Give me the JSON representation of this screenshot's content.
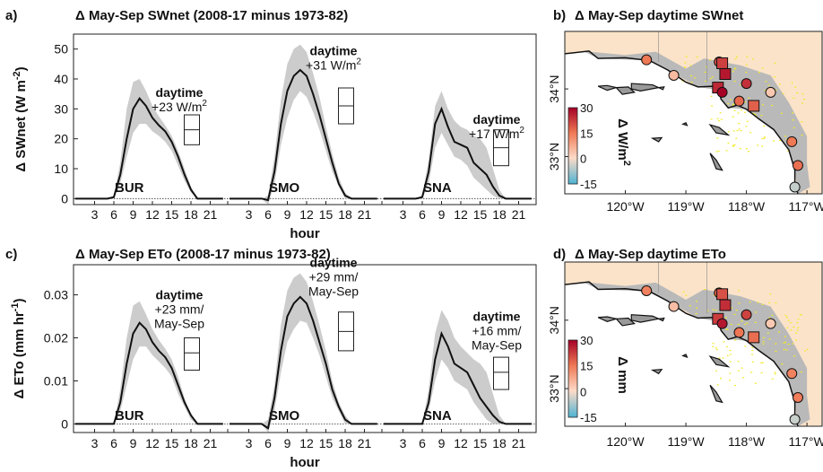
{
  "panels": [
    {
      "tag": "a)",
      "title": "Δ May-Sep SWnet (2008-17 minus 1973-82)",
      "ylabel": "Δ SWnet (W m",
      "ylabel_sup": "-2",
      "ylabel_end": ")",
      "xlabel": "hour",
      "yticks": [
        "0",
        "10",
        "20",
        "30",
        "40",
        "50"
      ],
      "xticks": [
        "3",
        "6",
        "9",
        "12",
        "15",
        "18",
        "21"
      ]
    },
    {
      "tag": "c)",
      "title": "Δ May-Sep ETo (2008-17 minus 1973-82)",
      "ylabel": "Δ ETo (mm hr",
      "ylabel_sup": "-1",
      "ylabel_end": ")",
      "xlabel": "hour",
      "yticks": [
        "0",
        "0.01",
        "0.02",
        "0.03"
      ],
      "xticks": [
        "3",
        "6",
        "9",
        "12",
        "15",
        "18",
        "21"
      ]
    }
  ],
  "maps": [
    {
      "tag": "b)",
      "title": "Δ May-Sep daytime SWnet",
      "lat_ticks": [
        "33°N",
        "34°N"
      ],
      "lon_ticks": [
        "120°W",
        "119°W",
        "118°W",
        "117°W"
      ],
      "cbar_ticks": [
        "30",
        "15",
        "0",
        "-15"
      ],
      "cbar_label": "Δ W/m",
      "cbar_label_sup": "2"
    },
    {
      "tag": "d)",
      "title": "Δ May-Sep daytime ETo",
      "lat_ticks": [
        "33°N",
        "34°N"
      ],
      "lon_ticks": [
        "120°W",
        "119°W",
        "118°W",
        "117°W"
      ],
      "cbar_ticks": [
        "30",
        "15",
        "0",
        "-15"
      ],
      "cbar_label": "Δ mm",
      "cbar_label_sup": ""
    }
  ],
  "colors": {
    "line": "#111111",
    "band": "#cccccc",
    "land": "#fbe3c9",
    "ocean": "#ffffff",
    "urban": "#b9b9b9",
    "veg": "#f2ea2a",
    "cbar_high": "#a50026",
    "cbar_mid": "#fddbc7",
    "cbar_low": "#4eb3d3"
  },
  "chart_data": [
    {
      "type": "line",
      "title": "Δ May-Sep SWnet (2008-17 minus 1973-82)",
      "xlabel": "hour",
      "ylabel": "Δ SWnet (W m-2)",
      "ylim": [
        -2,
        55
      ],
      "series": [
        {
          "name": "BUR",
          "x": [
            0,
            5,
            6,
            7,
            8,
            9,
            10,
            11,
            12,
            13,
            14,
            15,
            16,
            17,
            18,
            19,
            23
          ],
          "values": [
            0,
            0,
            0.5,
            8,
            20,
            30,
            33.5,
            31,
            27,
            24.5,
            22.5,
            19,
            14,
            8,
            3,
            0,
            0
          ],
          "band_upper": [
            0,
            0,
            1,
            12,
            30,
            39,
            40,
            36,
            31,
            27.5,
            24.5,
            21,
            16,
            10,
            4,
            0,
            0
          ],
          "band_lower": [
            0,
            0,
            0,
            5,
            14,
            22,
            25,
            25,
            22.5,
            21,
            19,
            16,
            11,
            6,
            2,
            0,
            0
          ],
          "label": "BUR",
          "daytime_label": "daytime",
          "daytime_value": "+23 W/m",
          "daytime_sup": "2",
          "box_median": 23,
          "box_q1": 18,
          "box_q3": 28
        },
        {
          "name": "SMO",
          "x": [
            0,
            5,
            6,
            7,
            8,
            9,
            10,
            11,
            12,
            13,
            14,
            15,
            16,
            17,
            18,
            19,
            23
          ],
          "values": [
            0,
            0,
            -0.5,
            9,
            25,
            36,
            41,
            43,
            41,
            35,
            28,
            20,
            12,
            5,
            1,
            0,
            0
          ],
          "band_upper": [
            0,
            0,
            1,
            14,
            33,
            45,
            50,
            51.5,
            49,
            42,
            34,
            24,
            15,
            7,
            2,
            0,
            0
          ],
          "band_lower": [
            0,
            0,
            -2,
            5,
            18,
            27,
            33,
            36,
            34,
            29,
            23,
            16,
            9,
            4,
            0,
            0,
            0
          ],
          "label": "SMO",
          "daytime_label": "daytime",
          "daytime_value": "+31 W/m",
          "daytime_sup": "2",
          "box_median": 31,
          "box_q1": 25,
          "box_q3": 37
        },
        {
          "name": "SNA",
          "x": [
            0,
            5,
            6,
            7,
            8,
            9,
            10,
            11,
            12,
            13,
            14,
            15,
            16,
            17,
            18,
            19,
            23
          ],
          "values": [
            0,
            0,
            0.5,
            9,
            25,
            30,
            24,
            19,
            18,
            17,
            12,
            10,
            8,
            4,
            1,
            0,
            0
          ],
          "band_upper": [
            0,
            0,
            1,
            13,
            31,
            36,
            30,
            26,
            24,
            23,
            21,
            20,
            17,
            10,
            3,
            0,
            0
          ],
          "band_lower": [
            0,
            0,
            0,
            5,
            17,
            22,
            18,
            14,
            13,
            11,
            7,
            5,
            3,
            1,
            0,
            0,
            0
          ],
          "label": "SNA",
          "daytime_label": "daytime",
          "daytime_value": "+17 W/m",
          "daytime_sup": "2",
          "box_median": 17,
          "box_q1": 11,
          "box_q3": 23
        }
      ]
    },
    {
      "type": "line",
      "title": "Δ May-Sep ETo (2008-17 minus 1973-82)",
      "xlabel": "hour",
      "ylabel": "Δ ETo (mm hr-1)",
      "ylim": [
        -0.002,
        0.037
      ],
      "series": [
        {
          "name": "BUR",
          "x": [
            0,
            5,
            6,
            7,
            8,
            9,
            10,
            11,
            12,
            13,
            14,
            15,
            16,
            17,
            18,
            19,
            23
          ],
          "values": [
            0,
            0,
            0,
            0.005,
            0.014,
            0.021,
            0.0235,
            0.022,
            0.019,
            0.017,
            0.0155,
            0.013,
            0.009,
            0.005,
            0.002,
            0,
            0
          ],
          "band_upper": [
            0,
            0,
            0,
            0.008,
            0.02,
            0.0275,
            0.0285,
            0.0255,
            0.022,
            0.0195,
            0.0175,
            0.015,
            0.011,
            0.006,
            0.002,
            0,
            0
          ],
          "band_lower": [
            0,
            0,
            0,
            0.003,
            0.009,
            0.015,
            0.018,
            0.018,
            0.016,
            0.0145,
            0.013,
            0.011,
            0.007,
            0.004,
            0.001,
            0,
            0
          ],
          "label": "BUR",
          "daytime_label": "daytime",
          "daytime_value": "+23 mm/",
          "daytime_line2": "May-Sep",
          "box_median": 0.0165,
          "box_q1": 0.0125,
          "box_q3": 0.02
        },
        {
          "name": "SMO",
          "x": [
            0,
            5,
            6,
            7,
            8,
            9,
            10,
            11,
            12,
            13,
            14,
            15,
            16,
            17,
            18,
            19,
            23
          ],
          "values": [
            0,
            0,
            -0.001,
            0.006,
            0.017,
            0.025,
            0.028,
            0.0295,
            0.028,
            0.024,
            0.019,
            0.014,
            0.008,
            0.004,
            0.001,
            0,
            0
          ],
          "band_upper": [
            0,
            0,
            0.001,
            0.009,
            0.023,
            0.031,
            0.034,
            0.035,
            0.033,
            0.0285,
            0.023,
            0.017,
            0.01,
            0.005,
            0.002,
            0,
            0
          ],
          "band_lower": [
            0,
            0,
            -0.002,
            0.003,
            0.012,
            0.019,
            0.022,
            0.024,
            0.0235,
            0.02,
            0.016,
            0.011,
            0.006,
            0.003,
            0,
            0,
            0
          ],
          "label": "SMO",
          "daytime_label": "daytime",
          "daytime_value": "+29 mm/",
          "daytime_line2": "May-Sep",
          "box_median": 0.0215,
          "box_q1": 0.017,
          "box_q3": 0.026
        },
        {
          "name": "SNA",
          "x": [
            0,
            5,
            6,
            7,
            8,
            9,
            10,
            11,
            12,
            13,
            14,
            15,
            16,
            17,
            18,
            19,
            23
          ],
          "values": [
            0,
            0,
            0,
            0.005,
            0.015,
            0.021,
            0.018,
            0.014,
            0.013,
            0.012,
            0.009,
            0.006,
            0.004,
            0.002,
            0.0005,
            0,
            0
          ],
          "band_upper": [
            0,
            0,
            0,
            0.008,
            0.021,
            0.0265,
            0.024,
            0.02,
            0.018,
            0.0165,
            0.015,
            0.014,
            0.012,
            0.007,
            0.002,
            0,
            0
          ],
          "band_lower": [
            0,
            0,
            0,
            0.003,
            0.01,
            0.015,
            0.013,
            0.01,
            0.009,
            0.008,
            0.005,
            0.003,
            0.001,
            0,
            0,
            0,
            0
          ],
          "label": "SNA",
          "daytime_label": "daytime",
          "daytime_value": "+16 mm/",
          "daytime_line2": "May-Sep",
          "box_median": 0.012,
          "box_q1": 0.008,
          "box_q3": 0.0155
        }
      ]
    }
  ],
  "map_stations": [
    {
      "lon": -119.65,
      "lat": 34.43,
      "value": 15,
      "shape": "circle"
    },
    {
      "lon": -119.2,
      "lat": 34.2,
      "value": 5,
      "shape": "circle"
    },
    {
      "lon": -118.45,
      "lat": 34.4,
      "value": 20,
      "shape": "circle"
    },
    {
      "lon": -118.4,
      "lat": 34.38,
      "value": 22,
      "shape": "square"
    },
    {
      "lon": -118.35,
      "lat": 34.22,
      "value": 27,
      "shape": "square"
    },
    {
      "lon": -118.47,
      "lat": 34.02,
      "value": 25,
      "shape": "square"
    },
    {
      "lon": -118.4,
      "lat": 33.95,
      "value": 30,
      "shape": "circle"
    },
    {
      "lon": -118.12,
      "lat": 33.82,
      "value": 17,
      "shape": "circle"
    },
    {
      "lon": -117.88,
      "lat": 33.75,
      "value": 18,
      "shape": "square"
    },
    {
      "lon": -118.0,
      "lat": 34.08,
      "value": 24,
      "shape": "circle"
    },
    {
      "lon": -117.6,
      "lat": 33.95,
      "value": 3,
      "shape": "circle"
    },
    {
      "lon": -117.25,
      "lat": 33.22,
      "value": 15,
      "shape": "circle"
    },
    {
      "lon": -117.15,
      "lat": 32.87,
      "value": 16,
      "shape": "circle"
    },
    {
      "lon": -117.2,
      "lat": 32.55,
      "value": -5,
      "shape": "circle"
    }
  ]
}
